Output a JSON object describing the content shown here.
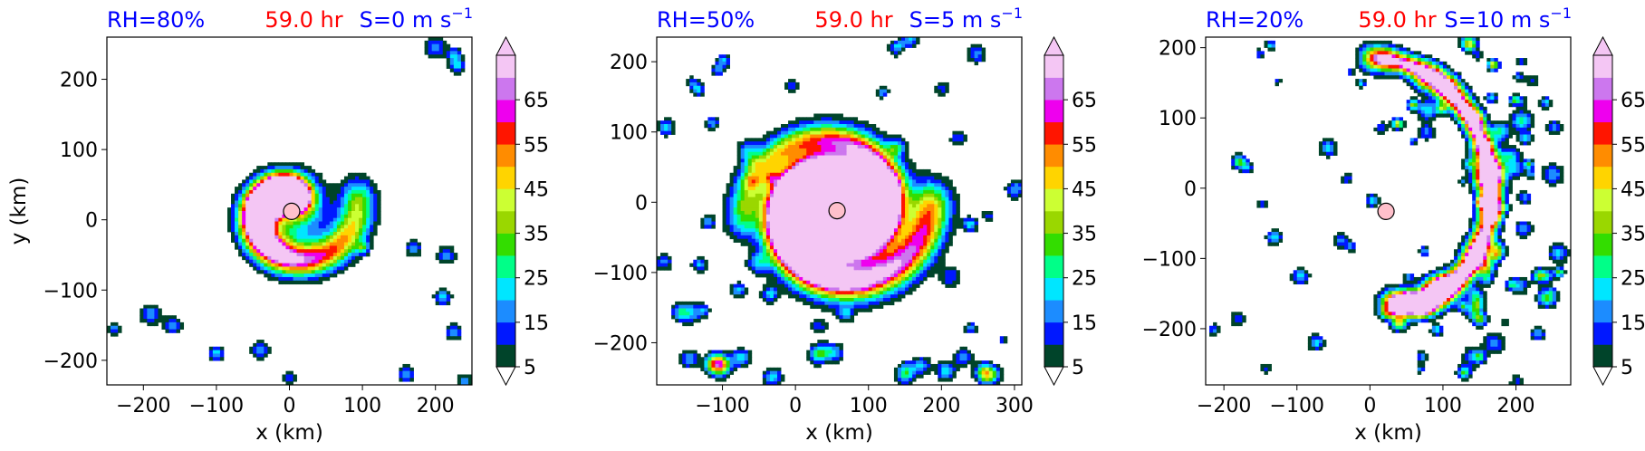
{
  "colorbar": {
    "tick_labels": [
      "5",
      "15",
      "25",
      "35",
      "45",
      "55",
      "65"
    ],
    "levels": [
      5,
      10,
      15,
      20,
      25,
      30,
      35,
      40,
      45,
      50,
      55,
      60,
      65,
      70
    ],
    "colors": [
      "#00442a",
      "#0018ff",
      "#1c8cff",
      "#00e6ff",
      "#00ff88",
      "#33dd00",
      "#9ad700",
      "#ccff33",
      "#ffd400",
      "#ff8c00",
      "#ff1500",
      "#ee00ee",
      "#cc77ee",
      "#f4c6f4"
    ],
    "extend": "both"
  },
  "chart_data": [
    {
      "type": "heatmap",
      "title_left": "RH=80%",
      "title_center": "59.0 hr",
      "title_right": "S=0 m s",
      "title_right_sup": "−1",
      "title_colors": {
        "left": "#0000ff",
        "center": "#ff0000",
        "right": "#0000ff"
      },
      "xlabel": "x (km)",
      "ylabel": "y (km)",
      "xlim": [
        -250,
        250
      ],
      "ylim": [
        -235,
        260
      ],
      "xticks": [
        -200,
        -100,
        0,
        100,
        200
      ],
      "yticks": [
        -200,
        -100,
        0,
        100,
        200
      ],
      "xtick_labels": [
        "−200",
        "−100",
        "0",
        "100",
        "200"
      ],
      "ytick_labels": [
        "−200",
        "−100",
        "0",
        "100",
        "200"
      ],
      "center_marker": {
        "x": 3,
        "y": 12
      },
      "pattern": "compact"
    },
    {
      "type": "heatmap",
      "title_left": "RH=50%",
      "title_center": "59.0 hr",
      "title_right": "S=5 m s",
      "title_right_sup": "−1",
      "title_colors": {
        "left": "#0000ff",
        "center": "#ff0000",
        "right": "#0000ff"
      },
      "xlabel": "x (km)",
      "ylabel": "",
      "xlim": [
        -190,
        310
      ],
      "ylim": [
        -260,
        235
      ],
      "xticks": [
        -100,
        0,
        100,
        200,
        300
      ],
      "yticks": [
        -200,
        -100,
        0,
        100,
        200
      ],
      "xtick_labels": [
        "−100",
        "0",
        "100",
        "200",
        "300"
      ],
      "ytick_labels": [
        "−200",
        "−100",
        "0",
        "100",
        "200"
      ],
      "center_marker": {
        "x": 57,
        "y": -12
      },
      "pattern": "broad"
    },
    {
      "type": "heatmap",
      "title_left": "RH=20%",
      "title_center": "59.0 hr",
      "title_right": "S=10 m s",
      "title_right_sup": "−1",
      "title_colors": {
        "left": "#0000ff",
        "center": "#ff0000",
        "right": "#0000ff"
      },
      "xlabel": "x (km)",
      "ylabel": "",
      "xlim": [
        -225,
        275
      ],
      "ylim": [
        -280,
        215
      ],
      "xticks": [
        -200,
        -100,
        0,
        100,
        200
      ],
      "yticks": [
        -200,
        -100,
        0,
        100,
        200
      ],
      "xtick_labels": [
        "−200",
        "−100",
        "0",
        "100",
        "200"
      ],
      "ytick_labels": [
        "−200",
        "−100",
        "0",
        "100",
        "200"
      ],
      "center_marker": {
        "x": 22,
        "y": -33
      },
      "pattern": "sheared"
    }
  ]
}
